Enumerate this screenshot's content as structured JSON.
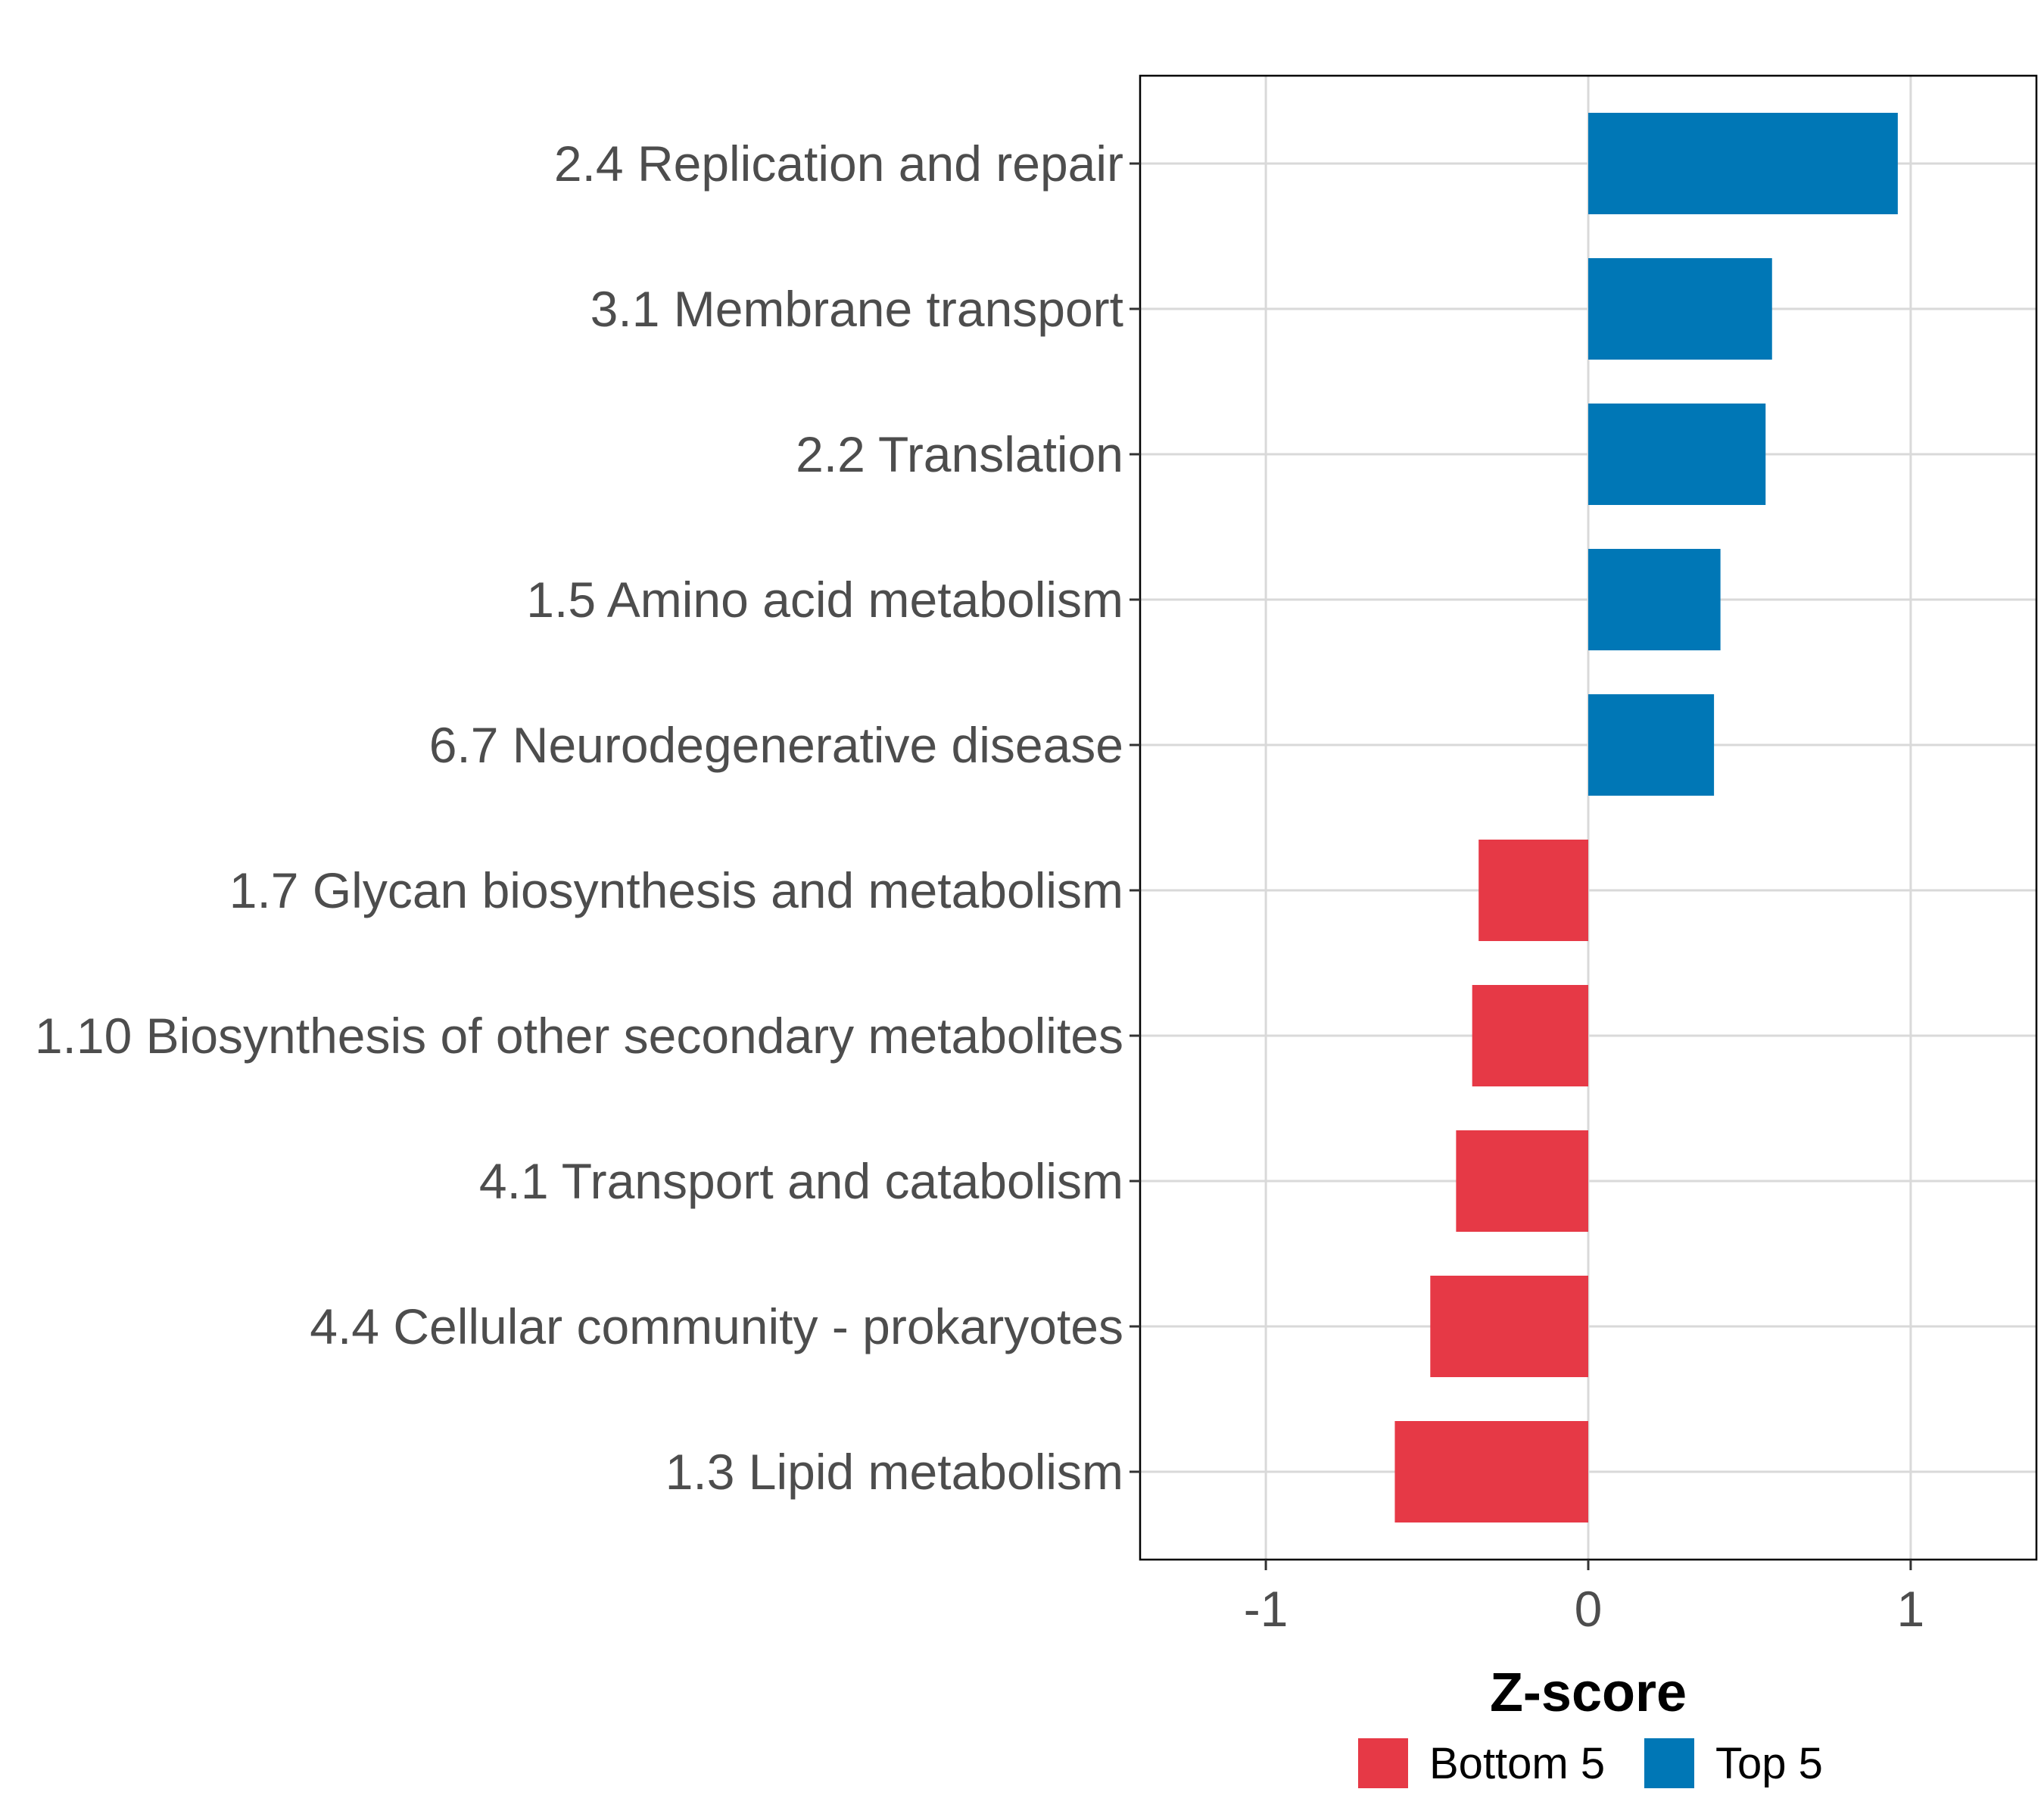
{
  "chart_data": {
    "type": "bar",
    "orientation": "horizontal",
    "title": "",
    "xlabel": "Z-score",
    "ylabel": "",
    "xlim": [
      -1.39,
      1.39
    ],
    "xticks": [
      {
        "value": -1,
        "label": "-1"
      },
      {
        "value": 0,
        "label": "0"
      },
      {
        "value": 1,
        "label": "1"
      }
    ],
    "grid": true,
    "colors": {
      "Bottom 5": "#e63946",
      "Top 5": "#0077b6",
      "grid": "#d9d9d9",
      "label": "#4d4d4d"
    },
    "categories": [
      "2.4 Replication and repair",
      "3.1 Membrane transport",
      "2.2 Translation",
      "1.5 Amino acid metabolism",
      "6.7 Neurodegenerative disease",
      "1.7 Glycan biosynthesis and metabolism",
      "1.10 Biosynthesis of other secondary metabolites",
      "4.1 Transport and catabolism",
      "4.4 Cellular community - prokaryotes",
      "1.3 Lipid metabolism"
    ],
    "values": [
      0.96,
      0.57,
      0.55,
      0.41,
      0.39,
      -0.34,
      -0.36,
      -0.41,
      -0.49,
      -0.6
    ],
    "groups": [
      "Top 5",
      "Top 5",
      "Top 5",
      "Top 5",
      "Top 5",
      "Bottom 5",
      "Bottom 5",
      "Bottom 5",
      "Bottom 5",
      "Bottom 5"
    ],
    "legend": {
      "position": "bottom",
      "entries": [
        {
          "name": "Bottom 5",
          "color": "#e63946"
        },
        {
          "name": "Top 5",
          "color": "#0077b6"
        }
      ]
    }
  }
}
